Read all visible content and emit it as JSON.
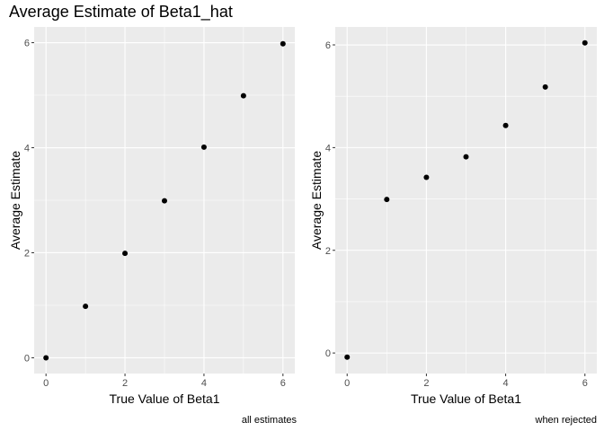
{
  "figure": {
    "title": "Average Estimate of Beta1_hat"
  },
  "colors": {
    "panel_bg": "#EBEBEB",
    "grid_major": "#FFFFFF",
    "point": "#000000",
    "tick_text": "#4D4D4D"
  },
  "chart_data": [
    {
      "type": "scatter",
      "title": "",
      "xlabel": "True Value of Beta1",
      "ylabel": "Average Estimate",
      "caption": "all estimates",
      "xlim": [
        -0.3,
        6.3
      ],
      "ylim": [
        -0.3,
        6.3
      ],
      "xticks": [
        0,
        2,
        4,
        6
      ],
      "yticks": [
        0,
        2,
        4,
        6
      ],
      "x": [
        0,
        1,
        2,
        3,
        4,
        5,
        6
      ],
      "y": [
        0.0,
        0.98,
        1.99,
        2.99,
        4.01,
        4.99,
        5.98
      ],
      "grid": true
    },
    {
      "type": "scatter",
      "title": "",
      "xlabel": "True Value of Beta1",
      "ylabel": "Average Estimate",
      "caption": "when rejected",
      "xlim": [
        -0.3,
        6.3
      ],
      "ylim": [
        -0.4,
        6.35
      ],
      "xticks": [
        0,
        2,
        4,
        6
      ],
      "yticks": [
        0,
        2,
        4,
        6
      ],
      "x": [
        0,
        1,
        2,
        3,
        4,
        5,
        6
      ],
      "y": [
        -0.08,
        2.99,
        3.42,
        3.82,
        4.43,
        5.18,
        6.04
      ],
      "grid": true
    }
  ]
}
